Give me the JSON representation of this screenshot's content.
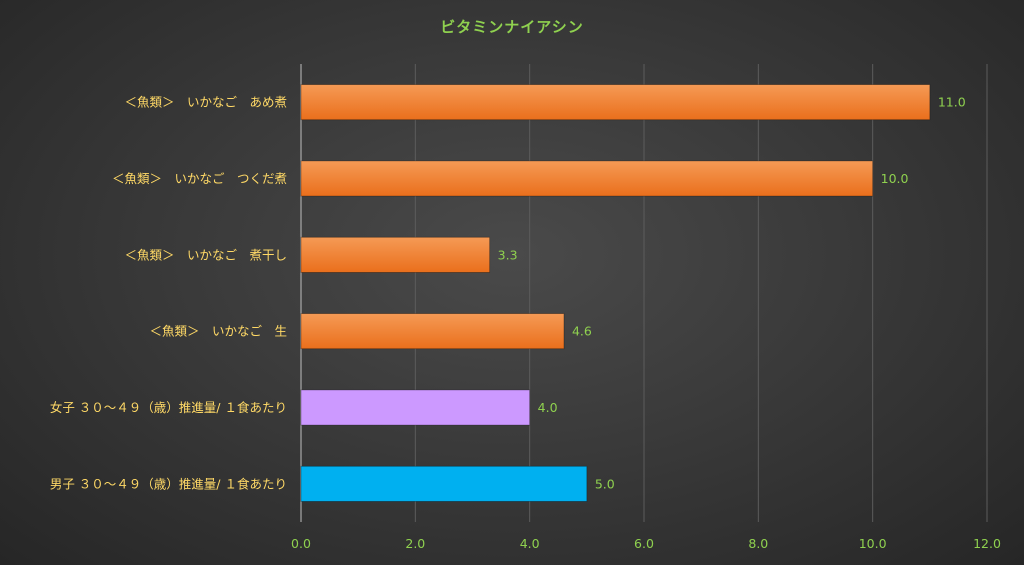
{
  "chart_data": {
    "type": "bar",
    "orientation": "horizontal",
    "title": "ビタミンナイアシン",
    "categories": [
      "＜魚類＞　いかなご　あめ煮",
      "＜魚類＞　いかなご　つくだ煮",
      "＜魚類＞　いかなご　煮干し",
      "＜魚類＞　いかなご　生",
      "女子 ３０〜４９（歳）推進量/ １食あたり",
      "男子 ３０〜４９（歳）推進量/ １食あたり"
    ],
    "values": [
      11.0,
      10.0,
      3.3,
      4.6,
      4.0,
      5.0
    ],
    "value_labels": [
      "11.0",
      "10.0",
      "3.3",
      "4.6",
      "4.0",
      "5.0"
    ],
    "colors": [
      "#f07c2c",
      "#f07c2c",
      "#f07c2c",
      "#f07c2c",
      "#cc99ff",
      "#00b0f0"
    ],
    "xlim": [
      0,
      12
    ],
    "ticks": [
      "0.0",
      "2.0",
      "4.0",
      "6.0",
      "8.0",
      "10.0",
      "12.0"
    ],
    "tick_values": [
      0,
      2,
      4,
      6,
      8,
      10,
      12
    ],
    "grid": true,
    "legend": "none"
  }
}
